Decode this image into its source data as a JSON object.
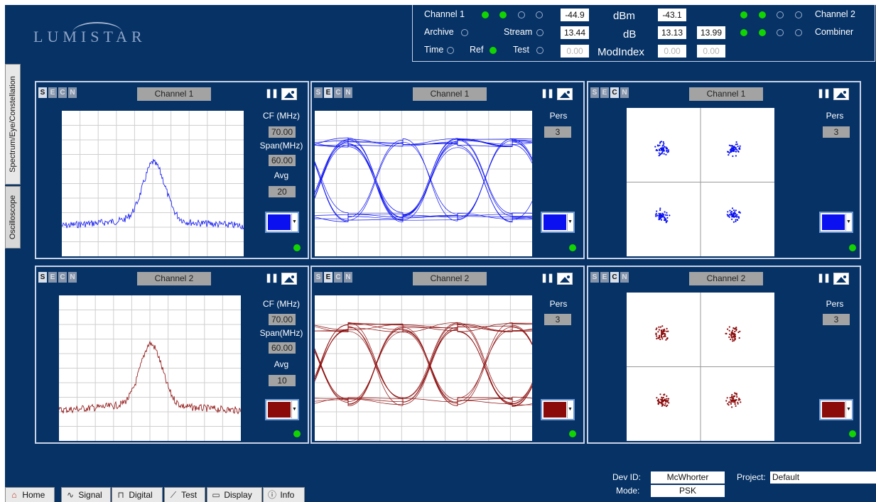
{
  "logo": {
    "text": "LUMISTAR"
  },
  "status": {
    "channel1_label": "Channel 1",
    "channel2_label": "Channel 2",
    "archive_label": "Archive",
    "stream_label": "Stream",
    "combiner_label": "Combiner",
    "time_label": "Time",
    "ref_label": "Ref",
    "test_label": "Test",
    "dbm_label": "dBm",
    "db_label": "dB",
    "modindex_label": "ModIndex",
    "ch1_dbm": "-44.9",
    "ch2_dbm": "-43.1",
    "ch1_db": "13.44",
    "ch2_db": "13.13",
    "comb_db": "13.99",
    "ch1_mod": "0.00",
    "ch2_mod": "0.00",
    "comb_mod": "0.00"
  },
  "side_tabs": {
    "tab1": "Spectrum/Eye/Constellation",
    "tab2": "Oscilloscope"
  },
  "sec_letters": [
    "S",
    "E",
    "C",
    "N"
  ],
  "panels": {
    "p1": {
      "channel": "Channel 1",
      "label1": "CF (MHz)",
      "val1": "70.00",
      "label2": "Span(MHz)",
      "val2": "60.00",
      "label3": "Avg",
      "val3": "20"
    },
    "p2": {
      "channel": "Channel 1",
      "label1": "Pers",
      "val1": "3"
    },
    "p3": {
      "channel": "Channel 1",
      "label1": "Pers",
      "val1": "3"
    },
    "p4": {
      "channel": "Channel 2",
      "label1": "CF (MHz)",
      "val1": "70.00",
      "label2": "Span(MHz)",
      "val2": "60.00",
      "label3": "Avg",
      "val3": "10"
    },
    "p5": {
      "channel": "Channel 2",
      "label1": "Pers",
      "val1": "3"
    },
    "p6": {
      "channel": "Channel 2",
      "label1": "Pers",
      "val1": "3"
    }
  },
  "colors": {
    "ch1": "#0a10f0",
    "ch2": "#8b0a0a",
    "led": "#11d400"
  },
  "nav": {
    "home": "Home",
    "signal": "Signal",
    "digital": "Digital",
    "test": "Test",
    "display": "Display",
    "info": "Info"
  },
  "footer": {
    "devid_label": "Dev ID:",
    "devid": "McWhorter",
    "mode_label": "Mode:",
    "mode": "PSK",
    "project_label": "Project:",
    "project": "Default"
  }
}
